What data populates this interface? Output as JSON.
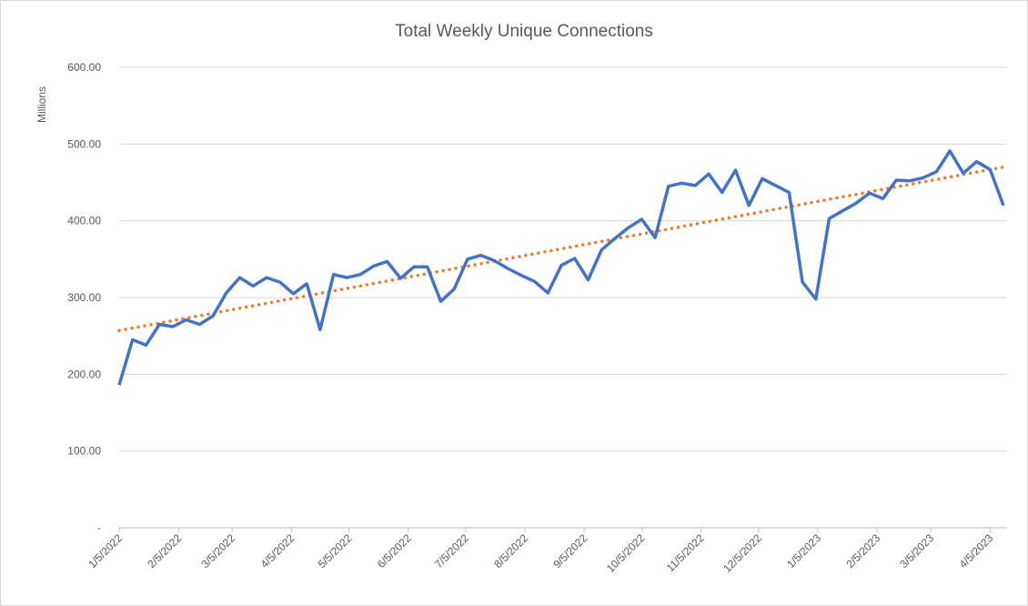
{
  "chart_data": {
    "type": "line",
    "title": "Total Weekly Unique Connections",
    "y_label": "Millions",
    "x": [
      "1/5/2022",
      "1/12/2022",
      "1/19/2022",
      "1/26/2022",
      "2/2/2022",
      "2/9/2022",
      "2/16/2022",
      "2/23/2022",
      "3/2/2022",
      "3/9/2022",
      "3/16/2022",
      "3/23/2022",
      "3/30/2022",
      "4/6/2022",
      "4/13/2022",
      "4/20/2022",
      "4/27/2022",
      "5/4/2022",
      "5/11/2022",
      "5/18/2022",
      "5/25/2022",
      "6/1/2022",
      "6/8/2022",
      "6/15/2022",
      "6/22/2022",
      "6/29/2022",
      "7/6/2022",
      "7/13/2022",
      "7/20/2022",
      "7/27/2022",
      "8/3/2022",
      "8/10/2022",
      "8/17/2022",
      "8/24/2022",
      "8/31/2022",
      "9/7/2022",
      "9/14/2022",
      "9/21/2022",
      "9/28/2022",
      "10/5/2022",
      "10/12/2022",
      "10/19/2022",
      "10/26/2022",
      "11/2/2022",
      "11/9/2022",
      "11/16/2022",
      "11/23/2022",
      "11/30/2022",
      "12/7/2022",
      "12/14/2022",
      "12/21/2022",
      "12/28/2022",
      "1/4/2023",
      "1/11/2023",
      "1/18/2023",
      "1/25/2023",
      "2/1/2023",
      "2/8/2023",
      "2/15/2023",
      "2/22/2023",
      "3/1/2023",
      "3/8/2023",
      "3/15/2023",
      "3/22/2023",
      "3/29/2023",
      "4/5/2023",
      "4/12/2023"
    ],
    "series": [
      {
        "name": "Total Weekly Unique Connections",
        "color": "#4472c4",
        "values": [
          186,
          245,
          238,
          265,
          262,
          271,
          265,
          276,
          306,
          326,
          315,
          326,
          320,
          305,
          318,
          258,
          330,
          326,
          330,
          341,
          347,
          325,
          340,
          340,
          295,
          311,
          350,
          355,
          348,
          338,
          329,
          321,
          306,
          342,
          351,
          323,
          362,
          377,
          391,
          402,
          378,
          445,
          449,
          446,
          461,
          437,
          466,
          420,
          455,
          446,
          437,
          320,
          298,
          403,
          413,
          423,
          436,
          429,
          453,
          452,
          456,
          464,
          491,
          462,
          477,
          467,
          420
        ]
      }
    ],
    "trendline": {
      "color": "#ed7d31",
      "values": [
        257,
        470
      ]
    },
    "xlim": [
      "1/5/2022",
      "4/12/2023"
    ],
    "xticks": [
      "1/5/2022",
      "2/5/2022",
      "3/5/2022",
      "4/5/2022",
      "5/5/2022",
      "6/5/2022",
      "7/5/2022",
      "8/5/2022",
      "9/5/2022",
      "10/5/2022",
      "11/5/2022",
      "12/5/2022",
      "1/5/2023",
      "2/5/2023",
      "3/5/2023",
      "4/5/2023"
    ],
    "ylim": [
      0,
      600
    ],
    "yticks": [
      {
        "value": 0,
        "label": "-"
      },
      {
        "value": 100,
        "label": "100.00"
      },
      {
        "value": 200,
        "label": "200.00"
      },
      {
        "value": 300,
        "label": "300.00"
      },
      {
        "value": 400,
        "label": "400.00"
      },
      {
        "value": 500,
        "label": "500.00"
      },
      {
        "value": 600,
        "label": "600.00"
      }
    ],
    "grid": true
  }
}
